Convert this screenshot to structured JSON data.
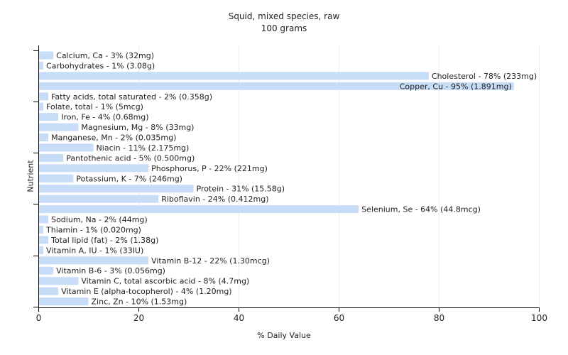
{
  "chart_data": {
    "type": "bar",
    "orientation": "horizontal",
    "title": "Squid, mixed species, raw",
    "subtitle": "100 grams",
    "xlabel": "% Daily Value",
    "ylabel": "Nutrient",
    "xlim": [
      0,
      100
    ],
    "xticks": [
      0,
      20,
      40,
      60,
      80,
      100
    ],
    "grid": true,
    "bar_color": "#c6dcf7",
    "categories": [
      "Calcium, Ca",
      "Carbohydrates",
      "Cholesterol",
      "Copper, Cu",
      "Fatty acids, total saturated",
      "Folate, total",
      "Iron, Fe",
      "Magnesium, Mg",
      "Manganese, Mn",
      "Niacin",
      "Pantothenic acid",
      "Phosphorus, P",
      "Potassium, K",
      "Protein",
      "Riboflavin",
      "Selenium, Se",
      "Sodium, Na",
      "Thiamin",
      "Total lipid (fat)",
      "Vitamin A, IU",
      "Vitamin B-12",
      "Vitamin B-6",
      "Vitamin C, total ascorbic acid",
      "Vitamin E (alpha-tocopherol)",
      "Zinc, Zn"
    ],
    "values": [
      3,
      1,
      78,
      95,
      2,
      1,
      4,
      8,
      2,
      11,
      5,
      22,
      7,
      31,
      24,
      64,
      2,
      1,
      2,
      1,
      22,
      3,
      8,
      4,
      10
    ],
    "labels": [
      "Calcium, Ca - 3% (32mg)",
      "Carbohydrates - 1% (3.08g)",
      "Cholesterol - 78% (233mg)",
      "Copper, Cu - 95% (1.891mg)",
      "Fatty acids, total saturated - 2% (0.358g)",
      "Folate, total - 1% (5mcg)",
      "Iron, Fe - 4% (0.68mg)",
      "Magnesium, Mg - 8% (33mg)",
      "Manganese, Mn - 2% (0.035mg)",
      "Niacin - 11% (2.175mg)",
      "Pantothenic acid - 5% (0.500mg)",
      "Phosphorus, P - 22% (221mg)",
      "Potassium, K - 7% (246mg)",
      "Protein - 31% (15.58g)",
      "Riboflavin - 24% (0.412mg)",
      "Selenium, Se - 64% (44.8mcg)",
      "Sodium, Na - 2% (44mg)",
      "Thiamin - 1% (0.020mg)",
      "Total lipid (fat) - 2% (1.38g)",
      "Vitamin A, IU - 1% (33IU)",
      "Vitamin B-12 - 22% (1.30mcg)",
      "Vitamin B-6 - 3% (0.056mg)",
      "Vitamin C, total ascorbic acid - 8% (4.7mg)",
      "Vitamin E (alpha-tocopherol) - 4% (1.20mg)",
      "Zinc, Zn - 10% (1.53mg)"
    ]
  }
}
